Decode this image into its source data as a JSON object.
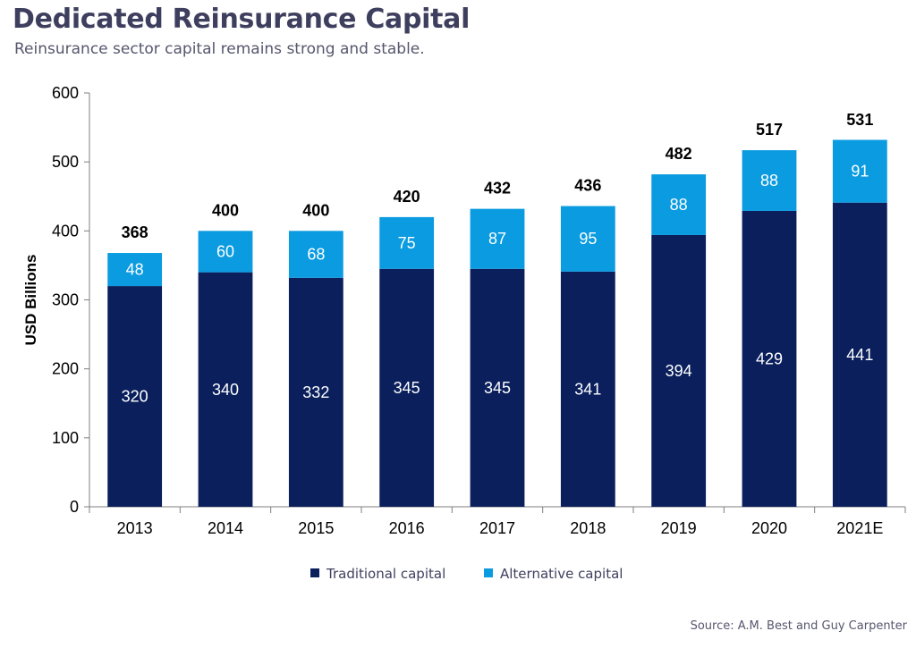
{
  "header": {
    "title": "Dedicated Reinsurance Capital",
    "subtitle": "Reinsurance sector capital remains strong and stable."
  },
  "footer": {
    "source": "Source: A.M. Best and Guy Carpenter"
  },
  "chart_data": {
    "type": "bar",
    "stacked": true,
    "categories": [
      "2013",
      "2014",
      "2015",
      "2016",
      "2017",
      "2018",
      "2019",
      "2020",
      "2021E"
    ],
    "series": [
      {
        "name": "Traditional capital",
        "color": "#0a1f5c",
        "values": [
          320,
          340,
          332,
          345,
          345,
          341,
          394,
          429,
          441
        ]
      },
      {
        "name": "Alternative capital",
        "color": "#0a9be0",
        "values": [
          48,
          60,
          68,
          75,
          87,
          95,
          88,
          88,
          91
        ]
      }
    ],
    "totals": [
      368,
      400,
      400,
      420,
      432,
      436,
      482,
      517,
      531
    ],
    "ylabel": "USD Billions",
    "xlabel": "",
    "ylim": [
      0,
      600
    ],
    "yticks": [
      0,
      100,
      200,
      300,
      400,
      500,
      600
    ],
    "grid": false,
    "legend": "bottom"
  }
}
